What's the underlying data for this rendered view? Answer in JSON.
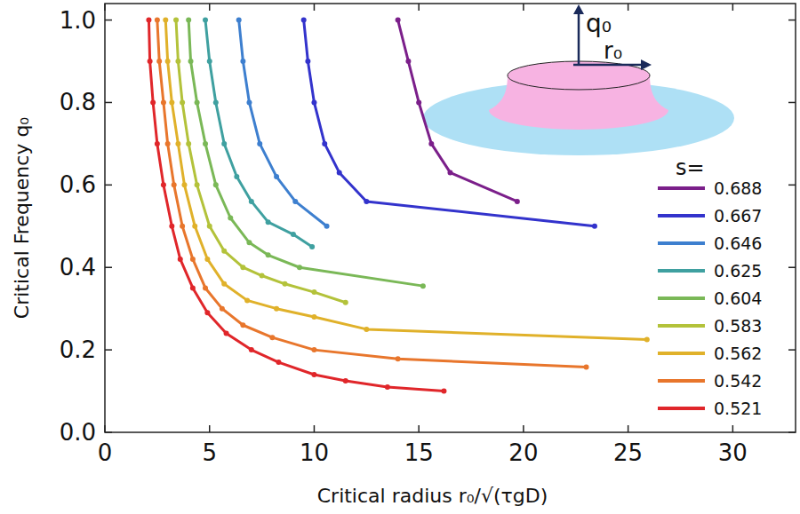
{
  "chart_data": {
    "type": "line",
    "x_label": "Critical radius r₀/√(τgD)",
    "y_label": "Critical Frequency q₀",
    "annotations": [
      "q₀",
      "r₀"
    ],
    "legend_title": "s=",
    "legend": "right",
    "marker": "circle",
    "xlim": [
      0,
      33
    ],
    "ylim": [
      0,
      1.04
    ],
    "xticks": [
      0,
      5,
      10,
      15,
      20,
      25,
      30
    ],
    "yticks": [
      {
        "value": 0,
        "label": "0.0"
      },
      0.2,
      0.4,
      0.6,
      0.8,
      {
        "value": 1,
        "label": "1.0"
      }
    ],
    "series": [
      {
        "name": "0.688",
        "color": "#7b1f8a",
        "x": [
          14.0,
          14.5,
          15.0,
          15.6,
          16.5,
          19.7
        ],
        "values": [
          1.0,
          0.9,
          0.8,
          0.7,
          0.63,
          0.56
        ]
      },
      {
        "name": "0.667",
        "color": "#3333cc",
        "x": [
          9.5,
          9.7,
          10.0,
          10.5,
          11.2,
          12.5,
          23.4
        ],
        "values": [
          1.0,
          0.9,
          0.8,
          0.7,
          0.63,
          0.56,
          0.5
        ]
      },
      {
        "name": "0.646",
        "color": "#3d7fcf",
        "x": [
          6.4,
          6.6,
          6.9,
          7.4,
          8.2,
          9.1,
          10.6
        ],
        "values": [
          1.0,
          0.9,
          0.8,
          0.7,
          0.62,
          0.56,
          0.5
        ]
      },
      {
        "name": "0.625",
        "color": "#3fa0a0",
        "x": [
          4.8,
          5.0,
          5.3,
          5.7,
          6.3,
          7.0,
          7.8,
          9.0,
          9.9
        ],
        "values": [
          1.0,
          0.9,
          0.8,
          0.7,
          0.62,
          0.56,
          0.51,
          0.48,
          0.45
        ]
      },
      {
        "name": "0.604",
        "color": "#7ab857",
        "x": [
          4.0,
          4.1,
          4.4,
          4.8,
          5.3,
          6.0,
          6.9,
          7.8,
          9.3,
          15.2
        ],
        "values": [
          1.0,
          0.9,
          0.8,
          0.7,
          0.6,
          0.52,
          0.46,
          0.43,
          0.4,
          0.355
        ]
      },
      {
        "name": "0.583",
        "color": "#b3c23a",
        "x": [
          3.4,
          3.5,
          3.7,
          4.0,
          4.4,
          5.0,
          5.7,
          6.6,
          7.5,
          8.6,
          10.0,
          11.5
        ],
        "values": [
          1.0,
          0.9,
          0.8,
          0.7,
          0.6,
          0.5,
          0.44,
          0.4,
          0.38,
          0.36,
          0.34,
          0.315
        ]
      },
      {
        "name": "0.562",
        "color": "#e0b12a",
        "x": [
          2.9,
          3.0,
          3.2,
          3.5,
          3.8,
          4.3,
          4.9,
          5.7,
          6.8,
          8.2,
          10.0,
          12.5,
          25.9
        ],
        "values": [
          1.0,
          0.9,
          0.8,
          0.7,
          0.6,
          0.5,
          0.42,
          0.36,
          0.32,
          0.3,
          0.28,
          0.25,
          0.225
        ]
      },
      {
        "name": "0.542",
        "color": "#e8762c",
        "x": [
          2.5,
          2.6,
          2.8,
          3.0,
          3.3,
          3.7,
          4.2,
          4.8,
          5.6,
          6.6,
          8.0,
          10.0,
          14.0,
          23.0
        ],
        "values": [
          1.0,
          0.9,
          0.8,
          0.7,
          0.6,
          0.5,
          0.42,
          0.35,
          0.3,
          0.26,
          0.23,
          0.2,
          0.178,
          0.158
        ]
      },
      {
        "name": "0.521",
        "color": "#e0262a",
        "x": [
          2.1,
          2.15,
          2.3,
          2.5,
          2.8,
          3.2,
          3.6,
          4.2,
          4.9,
          5.8,
          7.0,
          8.3,
          10.0,
          11.5,
          13.5,
          16.2
        ],
        "values": [
          1.0,
          0.9,
          0.8,
          0.7,
          0.6,
          0.5,
          0.42,
          0.35,
          0.29,
          0.24,
          0.2,
          0.17,
          0.14,
          0.125,
          0.11,
          0.1
        ]
      }
    ]
  }
}
